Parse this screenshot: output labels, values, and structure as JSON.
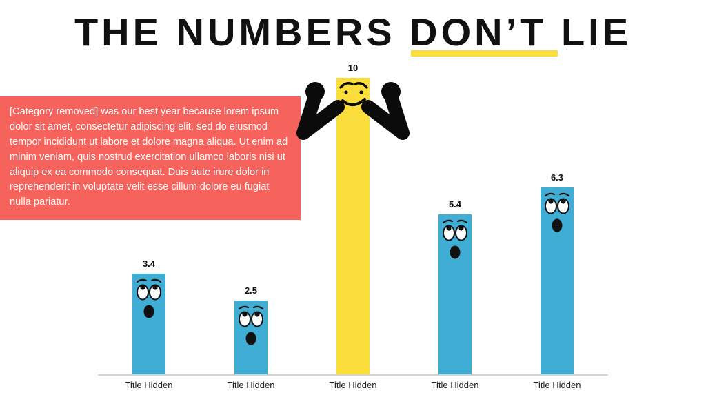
{
  "slide": {
    "title_prefix": "THE NUMBERS ",
    "title_highlight": "DON’T LIE",
    "callout_text": "[Category removed] was our best year because lorem ipsum dolor sit amet, consectetur adipiscing elit, sed do eiusmod tempor incididunt ut labore et dolore magna aliqua. Ut enim ad minim veniam, quis nostrud exercitation ullamco laboris nisi ut aliquip ex ea commodo consequat. Duis aute irure dolor in reprehenderit in voluptate velit esse cillum dolore eu fugiat nulla pariatur."
  },
  "colors": {
    "accent_red": "#F5635C",
    "bar_blue": "#3FADD4",
    "bar_yellow": "#FBDE3B",
    "title_black": "#111111",
    "underline_yellow": "#FBDE3B"
  },
  "chart_data": {
    "type": "bar",
    "title": "THE NUMBERS DON’T LIE",
    "categories": [
      "Title Hidden",
      "Title Hidden",
      "Title Hidden",
      "Title Hidden",
      "Title Hidden"
    ],
    "values": [
      3.4,
      2.5,
      10,
      5.4,
      6.3
    ],
    "value_labels": [
      "3.4",
      "2.5",
      "10",
      "5.4",
      "6.3"
    ],
    "xlabel": "",
    "ylabel": "",
    "ylim": [
      0,
      10
    ],
    "grid": false,
    "legend": false,
    "highlight_index": 2,
    "bar_colors": [
      "#3FADD4",
      "#3FADD4",
      "#FBDE3B",
      "#3FADD4",
      "#3FADD4"
    ],
    "bar_faces": [
      "surprised",
      "surprised",
      "flexing-champion",
      "surprised",
      "surprised"
    ]
  }
}
